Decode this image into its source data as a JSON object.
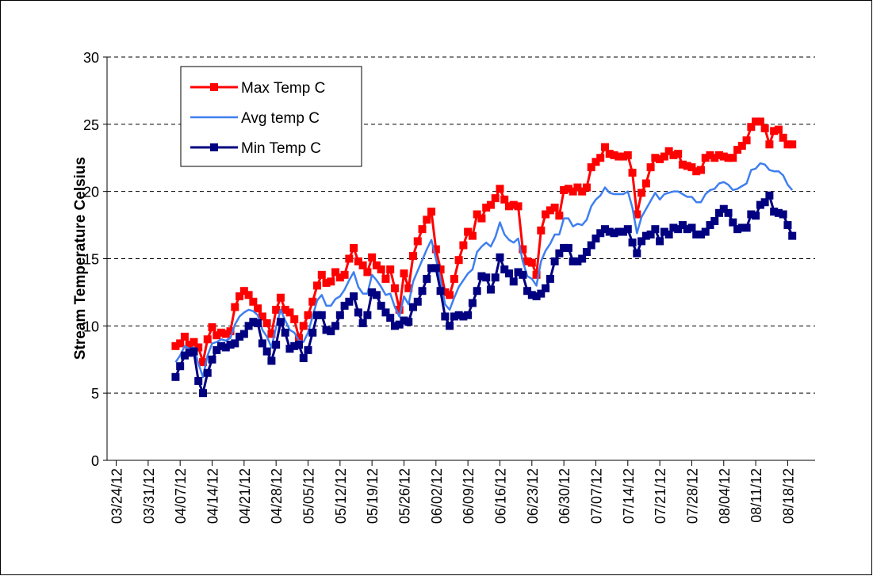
{
  "chart_data": {
    "type": "line",
    "y_label": "Stream Temperature Celsius",
    "x": [
      "04/06/12",
      "04/07/12",
      "04/08/12",
      "04/09/12",
      "04/10/12",
      "04/11/12",
      "04/12/12",
      "04/13/12",
      "04/14/12",
      "04/15/12",
      "04/16/12",
      "04/17/12",
      "04/18/12",
      "04/19/12",
      "04/20/12",
      "04/21/12",
      "04/22/12",
      "04/23/12",
      "04/24/12",
      "04/25/12",
      "04/26/12",
      "04/27/12",
      "04/28/12",
      "04/29/12",
      "04/30/12",
      "05/01/12",
      "05/02/12",
      "05/03/12",
      "05/04/12",
      "05/05/12",
      "05/06/12",
      "05/07/12",
      "05/08/12",
      "05/09/12",
      "05/10/12",
      "05/11/12",
      "05/12/12",
      "05/13/12",
      "05/14/12",
      "05/15/12",
      "05/16/12",
      "05/17/12",
      "05/18/12",
      "05/19/12",
      "05/20/12",
      "05/21/12",
      "05/22/12",
      "05/23/12",
      "05/24/12",
      "05/25/12",
      "05/26/12",
      "05/27/12",
      "05/28/12",
      "05/29/12",
      "05/30/12",
      "05/31/12",
      "06/01/12",
      "06/02/12",
      "06/03/12",
      "06/04/12",
      "06/05/12",
      "06/06/12",
      "06/07/12",
      "06/08/12",
      "06/09/12",
      "06/10/12",
      "06/11/12",
      "06/12/12",
      "06/13/12",
      "06/14/12",
      "06/15/12",
      "06/16/12",
      "06/17/12",
      "06/18/12",
      "06/19/12",
      "06/20/12",
      "06/21/12",
      "06/22/12",
      "06/23/12",
      "06/24/12",
      "06/25/12",
      "06/26/12",
      "06/27/12",
      "06/28/12",
      "06/29/12",
      "06/30/12",
      "07/01/12",
      "07/02/12",
      "07/03/12",
      "07/04/12",
      "07/05/12",
      "07/06/12",
      "07/07/12",
      "07/08/12",
      "07/09/12",
      "07/10/12",
      "07/11/12",
      "07/12/12",
      "07/13/12",
      "07/14/12",
      "07/15/12",
      "07/16/12",
      "07/17/12",
      "07/18/12",
      "07/19/12",
      "07/20/12",
      "07/21/12",
      "07/22/12",
      "07/23/12",
      "07/24/12",
      "07/25/12",
      "07/26/12",
      "07/27/12",
      "07/28/12",
      "07/29/12",
      "07/30/12",
      "07/31/12",
      "08/01/12",
      "08/02/12",
      "08/03/12",
      "08/04/12",
      "08/05/12",
      "08/06/12",
      "08/07/12",
      "08/08/12",
      "08/09/12",
      "08/10/12",
      "08/11/12",
      "08/12/12",
      "08/13/12",
      "08/14/12",
      "08/15/12",
      "08/16/12",
      "08/17/12",
      "08/18/12",
      "08/19/12"
    ],
    "series": [
      {
        "name": "Max Temp C",
        "color": "#ff0000",
        "marker": "square",
        "values": [
          8.5,
          8.7,
          9.2,
          8.6,
          8.8,
          8.4,
          7.3,
          9.0,
          9.9,
          9.3,
          9.5,
          9.4,
          9.6,
          11.4,
          12.2,
          12.6,
          12.3,
          11.8,
          11.3,
          10.7,
          10.2,
          9.4,
          11.2,
          12.1,
          11.2,
          11.0,
          10.5,
          9.1,
          10.0,
          10.8,
          11.8,
          13.0,
          13.8,
          13.2,
          13.3,
          14.0,
          13.6,
          13.8,
          15.0,
          15.8,
          14.8,
          14.5,
          14.0,
          15.1,
          14.5,
          14.2,
          13.5,
          14.2,
          12.8,
          11.2,
          13.9,
          12.8,
          15.2,
          16.3,
          17.2,
          17.9,
          18.5,
          15.7,
          14.2,
          12.5,
          12.3,
          13.5,
          14.9,
          16.0,
          17.0,
          16.7,
          18.3,
          18.0,
          18.8,
          19.0,
          19.5,
          20.2,
          19.4,
          18.9,
          19.0,
          18.9,
          15.7,
          14.8,
          14.7,
          13.8,
          17.1,
          18.3,
          18.6,
          18.8,
          18.2,
          20.1,
          20.2,
          20.0,
          20.3,
          20.0,
          20.3,
          21.8,
          22.2,
          22.5,
          23.3,
          22.8,
          22.7,
          22.6,
          22.6,
          22.7,
          21.4,
          18.3,
          19.9,
          20.6,
          21.8,
          22.5,
          22.4,
          22.6,
          23.0,
          22.7,
          22.8,
          22.0,
          21.9,
          21.8,
          21.5,
          21.6,
          22.5,
          22.7,
          22.5,
          22.7,
          22.6,
          22.5,
          22.5,
          23.1,
          23.4,
          23.8,
          24.8,
          25.2,
          25.2,
          24.7,
          23.5,
          24.5,
          24.6,
          24.0,
          23.5,
          23.5
        ]
      },
      {
        "name": "Avg temp C",
        "color": "#3f7fef",
        "marker": "none",
        "values": [
          7.3,
          7.8,
          8.5,
          8.3,
          8.4,
          7.2,
          6.2,
          7.8,
          8.7,
          8.8,
          9.0,
          8.9,
          9.1,
          10.1,
          10.7,
          11.0,
          11.2,
          11.1,
          10.8,
          9.7,
          9.2,
          8.4,
          9.9,
          11.2,
          10.4,
          9.7,
          9.5,
          8.9,
          8.8,
          9.5,
          10.7,
          11.9,
          12.3,
          11.5,
          11.5,
          12.0,
          12.2,
          12.7,
          13.4,
          14.0,
          12.9,
          12.4,
          12.4,
          13.8,
          13.4,
          12.9,
          12.3,
          12.4,
          11.4,
          10.7,
          12.2,
          11.6,
          13.3,
          14.1,
          14.9,
          15.7,
          16.4,
          15.0,
          13.4,
          11.6,
          11.2,
          12.1,
          12.9,
          13.4,
          13.9,
          14.2,
          15.5,
          15.9,
          16.2,
          15.9,
          16.6,
          17.7,
          16.8,
          16.4,
          16.2,
          16.5,
          14.8,
          13.7,
          13.5,
          13.0,
          14.8,
          15.6,
          16.1,
          16.8,
          16.8,
          18.0,
          18.0,
          17.4,
          17.6,
          17.5,
          17.9,
          18.9,
          19.4,
          19.7,
          20.3,
          19.9,
          19.8,
          19.8,
          19.8,
          20.0,
          18.8,
          16.9,
          18.1,
          18.7,
          19.3,
          19.9,
          19.4,
          19.8,
          19.9,
          20.0,
          20.0,
          19.8,
          19.6,
          19.6,
          19.2,
          19.2,
          19.8,
          20.1,
          20.2,
          20.6,
          20.7,
          20.5,
          20.1,
          20.2,
          20.4,
          20.6,
          21.6,
          21.7,
          22.1,
          22.0,
          21.6,
          21.5,
          21.5,
          21.2,
          20.5,
          20.1
        ]
      },
      {
        "name": "Min Temp C",
        "color": "#000080",
        "marker": "square",
        "values": [
          6.2,
          7.0,
          7.8,
          8.0,
          8.1,
          5.9,
          5.0,
          6.5,
          7.5,
          8.2,
          8.5,
          8.4,
          8.6,
          8.7,
          9.2,
          9.4,
          10.0,
          10.3,
          10.2,
          8.7,
          8.1,
          7.4,
          8.6,
          10.3,
          9.5,
          8.3,
          8.5,
          8.6,
          7.6,
          8.2,
          9.5,
          10.8,
          10.8,
          9.7,
          9.6,
          10.0,
          10.8,
          11.5,
          11.8,
          12.2,
          11.0,
          10.2,
          10.8,
          12.5,
          12.3,
          11.5,
          11.0,
          10.6,
          10.0,
          10.1,
          10.4,
          10.3,
          11.4,
          11.8,
          12.6,
          13.5,
          14.3,
          14.3,
          12.6,
          10.7,
          10.0,
          10.7,
          10.8,
          10.7,
          10.8,
          11.7,
          12.6,
          13.7,
          13.6,
          12.7,
          13.6,
          15.1,
          14.2,
          13.9,
          13.3,
          14.0,
          13.8,
          12.6,
          12.3,
          12.2,
          12.4,
          12.8,
          13.5,
          14.8,
          15.4,
          15.8,
          15.8,
          14.8,
          14.8,
          15.0,
          15.5,
          16.0,
          16.5,
          16.9,
          17.2,
          17.0,
          16.9,
          17.0,
          17.0,
          17.2,
          16.2,
          15.4,
          16.3,
          16.7,
          16.8,
          17.2,
          16.3,
          17.0,
          16.8,
          17.3,
          17.2,
          17.5,
          17.2,
          17.3,
          16.8,
          16.8,
          17.0,
          17.5,
          17.8,
          18.4,
          18.7,
          18.4,
          17.7,
          17.2,
          17.3,
          17.3,
          18.3,
          18.2,
          19.0,
          19.2,
          19.7,
          18.5,
          18.4,
          18.3,
          17.5,
          16.7
        ]
      }
    ],
    "xlim": [
      "03/22/12",
      "08/24/12"
    ],
    "xticks": [
      "03/24/12",
      "03/31/12",
      "04/07/12",
      "04/14/12",
      "04/21/12",
      "04/28/12",
      "05/05/12",
      "05/12/12",
      "05/19/12",
      "05/26/12",
      "06/02/12",
      "06/09/12",
      "06/16/12",
      "06/23/12",
      "06/30/12",
      "07/07/12",
      "07/14/12",
      "07/21/12",
      "07/28/12",
      "08/04/12",
      "08/11/12",
      "08/18/12"
    ],
    "ylim": [
      0,
      30
    ],
    "yticks": [
      0,
      5,
      10,
      15,
      20,
      25,
      30
    ],
    "grid": true,
    "legend": "upper-left"
  }
}
